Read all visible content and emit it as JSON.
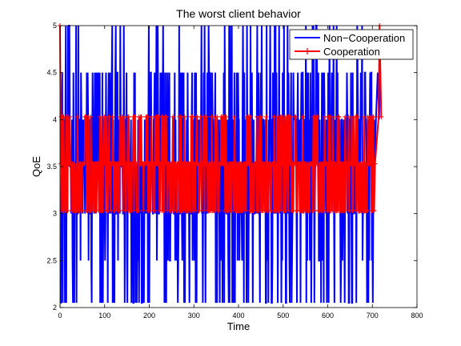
{
  "chart_data": {
    "type": "line",
    "title": "The worst client behavior",
    "xlabel": "Time",
    "ylabel": "QoE",
    "xlim": [
      0,
      800
    ],
    "ylim": [
      2,
      5
    ],
    "xticks": [
      "0",
      "100",
      "200",
      "300",
      "400",
      "500",
      "600",
      "700",
      "800"
    ],
    "yticks": [
      "2",
      "2.5",
      "3",
      "3.5",
      "4",
      "4.5",
      "5"
    ],
    "grid": false,
    "legend_position": "top-right",
    "series": [
      {
        "name": "Non−Cooperation",
        "color": "#0000ff",
        "marker": "none",
        "seed": 12345,
        "x_start": 0,
        "x_end": 720,
        "levels": [
          2.05,
          2.5,
          3,
          3.5,
          4,
          4.5,
          5
        ],
        "tail": [
          [
            705,
            3.5
          ],
          [
            708,
            4
          ],
          [
            712,
            4.5
          ],
          [
            715,
            4
          ],
          [
            718,
            4.5
          ],
          [
            720,
            4.5
          ]
        ]
      },
      {
        "name": "Cooperation",
        "color": "#ff0000",
        "marker": "+",
        "seed": 6789,
        "x_start": 0,
        "x_end": 720,
        "levels": [
          3.03,
          3.53,
          4.03
        ],
        "head": [
          [
            0,
            5
          ],
          [
            2,
            3.53
          ]
        ],
        "tail": [
          [
            704,
            3.03
          ],
          [
            706,
            3.53
          ],
          [
            714,
            4.03
          ],
          [
            716,
            5
          ],
          [
            720,
            4.03
          ]
        ]
      }
    ]
  }
}
